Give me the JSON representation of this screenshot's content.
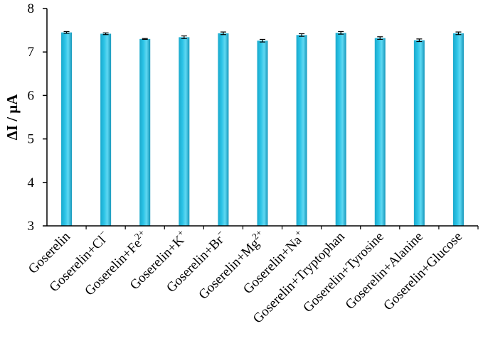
{
  "chart_data": {
    "type": "bar",
    "title": "",
    "xlabel": "",
    "ylabel": "ΔI / μA",
    "ylim": [
      3,
      8
    ],
    "yticks": [
      3,
      4,
      5,
      6,
      7,
      8
    ],
    "grid": false,
    "legend": "none",
    "bar_color": "#2bc3e6",
    "categories": [
      {
        "name": "Goserelin",
        "base": "Goserelin",
        "sup": ""
      },
      {
        "name": "Goserelin+Cl⁻",
        "base": "Goserelin+Cl",
        "sup": "−"
      },
      {
        "name": "Goserelin+Fe²⁺",
        "base": "Goserelin+Fe",
        "sup": "2+"
      },
      {
        "name": "Goserelin+K⁺",
        "base": "Goserelin+K",
        "sup": "+"
      },
      {
        "name": "Goserelin+Br⁻",
        "base": "Goserelin+Br",
        "sup": "−"
      },
      {
        "name": "Goserelin+Mg²⁺",
        "base": "Goserelin+Mg",
        "sup": "2+"
      },
      {
        "name": "Goserelin+Na⁺",
        "base": "Goserelin+Na",
        "sup": "+"
      },
      {
        "name": "Goserelin+Tryptophan",
        "base": "Goserelin+Tryptophan",
        "sup": ""
      },
      {
        "name": "Goserelin+Tyrosine",
        "base": "Goserelin+Tyrosine",
        "sup": ""
      },
      {
        "name": "Goserelin+Alanine",
        "base": "Goserelin+Alanine",
        "sup": ""
      },
      {
        "name": "Goserelin+Glucose",
        "base": "Goserelin+Glucose",
        "sup": ""
      }
    ],
    "values": [
      7.45,
      7.42,
      7.3,
      7.34,
      7.43,
      7.26,
      7.39,
      7.44,
      7.32,
      7.27,
      7.43
    ],
    "errors": [
      0.02,
      0.02,
      0.01,
      0.03,
      0.03,
      0.03,
      0.03,
      0.03,
      0.03,
      0.03,
      0.03
    ]
  }
}
